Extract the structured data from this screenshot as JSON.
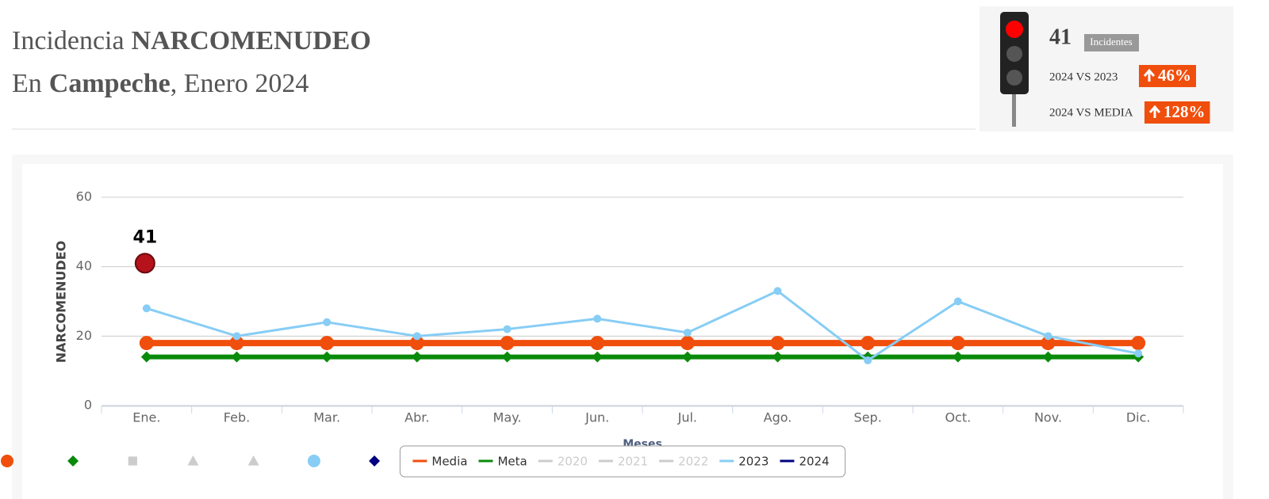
{
  "header": {
    "title_prefix": "Incidencia",
    "title_bold": "NARCOMENUDEO",
    "subtitle_prefix": "En",
    "subtitle_bold": "Campeche",
    "subtitle_suffix": ", Enero 2024"
  },
  "kpi": {
    "count": 41,
    "count_label": "Incidentes",
    "comparisons": [
      {
        "label": "2024 VS 2023",
        "value": "46%"
      },
      {
        "label": "2024 VS MEDIA",
        "value": "128%"
      }
    ]
  },
  "chart_data": {
    "type": "line",
    "y_label": "NARCOMENUDEO",
    "x_label": "Meses",
    "categories": [
      "Ene.",
      "Feb.",
      "Mar.",
      "Abr.",
      "May.",
      "Jun.",
      "Jul.",
      "Ago.",
      "Sep.",
      "Oct.",
      "Nov.",
      "Dic."
    ],
    "ylim": [
      0,
      60
    ],
    "yticks": [
      0,
      20,
      40,
      60
    ],
    "grid": true,
    "legend": "bottom",
    "series": [
      {
        "name": "Media",
        "color": "#f04e0c",
        "marker": "circle",
        "line_width": 8,
        "values": [
          18,
          18,
          18,
          18,
          18,
          18,
          18,
          18,
          18,
          18,
          18,
          18
        ]
      },
      {
        "name": "Meta",
        "color": "#0a8a0a",
        "marker": "diamond",
        "line_width": 6,
        "values": [
          14,
          14,
          14,
          14,
          14,
          14,
          14,
          14,
          14,
          14,
          14,
          14
        ]
      },
      {
        "name": "2020",
        "color": "#cccccc",
        "marker": "square",
        "hidden": true,
        "values": [
          null,
          null,
          null,
          null,
          null,
          null,
          null,
          null,
          null,
          null,
          null,
          null
        ]
      },
      {
        "name": "2021",
        "color": "#cccccc",
        "marker": "triangle",
        "hidden": true,
        "values": [
          null,
          null,
          null,
          null,
          null,
          null,
          null,
          null,
          null,
          null,
          null,
          null
        ]
      },
      {
        "name": "2022",
        "color": "#cccccc",
        "marker": "triangle",
        "hidden": true,
        "values": [
          null,
          null,
          null,
          null,
          null,
          null,
          null,
          null,
          null,
          null,
          null,
          null
        ]
      },
      {
        "name": "2023",
        "color": "#87cdf5",
        "marker": "circle",
        "line_width": 3,
        "values": [
          28,
          20,
          24,
          20,
          22,
          25,
          21,
          33,
          13,
          30,
          20,
          15
        ]
      },
      {
        "name": "2024",
        "color": "#000080",
        "marker": "diamond",
        "marker_color": "#b5121b",
        "data_labels": true,
        "values": [
          41,
          null,
          null,
          null,
          null,
          null,
          null,
          null,
          null,
          null,
          null,
          null
        ]
      }
    ]
  }
}
